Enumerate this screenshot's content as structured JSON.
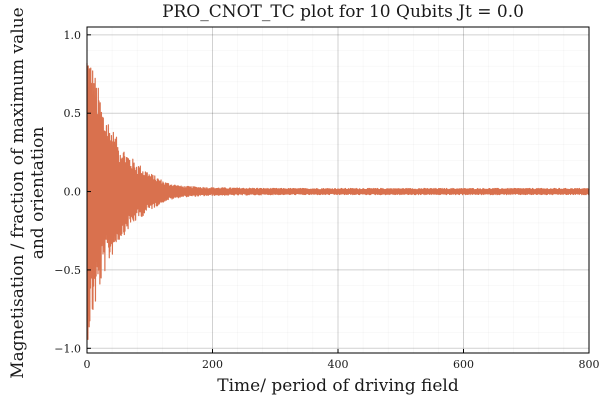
{
  "chart_data": {
    "type": "line",
    "title": "PRO_CNOT_TC plot for 10 Qubits Jt = 0.0",
    "xlabel": "Time/ period of driving field",
    "ylabel_line1": "Magnetisation / fraction of maximum value",
    "ylabel_line2": "and orientation",
    "xlim": [
      0,
      800
    ],
    "ylim": [
      -1.03,
      1.05
    ],
    "xticks": [
      0,
      200,
      400,
      600,
      800
    ],
    "xtick_labels": [
      "0",
      "200",
      "400",
      "600",
      "800"
    ],
    "yticks": [
      -1.0,
      -0.5,
      0.0,
      0.5,
      1.0
    ],
    "ytick_labels": [
      "−1.0",
      "−0.5",
      "0.0",
      "0.5",
      "1.0"
    ],
    "grid": true,
    "minor_grid": true,
    "legend": "none",
    "series": [
      {
        "color": "#d9714e",
        "description_points": {
          "x": [
            0,
            10,
            25,
            50,
            75,
            100,
            125,
            150,
            200,
            300,
            400,
            500,
            600,
            700,
            800
          ],
          "envelope": [
            0.97,
            0.8,
            0.55,
            0.32,
            0.2,
            0.12,
            0.06,
            0.035,
            0.025,
            0.02,
            0.02,
            0.02,
            0.02,
            0.02,
            0.02
          ]
        }
      }
    ]
  }
}
